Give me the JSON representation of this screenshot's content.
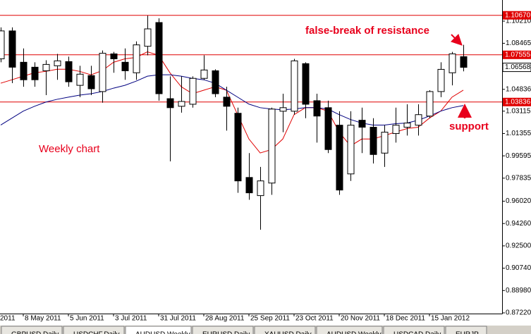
{
  "chart_data": {
    "type": "candlestick",
    "annotations": [
      "false-break of resistance",
      "support",
      "Weekly chart"
    ],
    "x_edge_label": "2011",
    "categories": [
      null,
      null,
      "8 May 2011",
      null,
      null,
      null,
      "5 Jun 2011",
      null,
      null,
      null,
      "3 Jul 2011",
      null,
      null,
      null,
      "31 Jul 2011",
      null,
      null,
      null,
      "28 Aug 2011",
      null,
      null,
      null,
      "25 Sep 2011",
      null,
      null,
      null,
      "23 Oct 2011",
      null,
      null,
      null,
      "20 Nov 2011",
      null,
      null,
      null,
      "18 Dec 2011",
      null,
      null,
      null,
      "15 Jan 2012",
      null,
      null,
      null
    ],
    "open": [
      1.0724,
      1.0944,
      1.0697,
      1.0658,
      1.063,
      1.0669,
      1.0702,
      1.0515,
      1.0592,
      1.0466,
      1.0763,
      1.0697,
      1.0614,
      1.0823,
      1.101,
      1.041,
      1.035,
      1.0366,
      1.057,
      1.063,
      1.0422,
      1.0295,
      0.9789,
      0.9646,
      0.9745,
      1.0311,
      1.0311,
      1.0686,
      1.0394,
      1.0339,
      1.0201,
      0.9817,
      1.024,
      1.0185,
      0.9981,
      1.0135,
      1.0185,
      1.0201,
      1.0273,
      1.0466,
      1.0614,
      1.0741
    ],
    "high": [
      1.0972,
      1.0972,
      1.0806,
      1.0697,
      1.0713,
      1.0763,
      1.0741,
      1.0669,
      1.0669,
      1.079,
      1.0779,
      1.0806,
      1.0861,
      1.1065,
      1.1043,
      1.0586,
      1.0586,
      1.0586,
      1.0752,
      1.0641,
      1.0504,
      1.0339,
      0.9981,
      0.9872,
      1.0339,
      1.0449,
      1.0724,
      1.0697,
      1.0449,
      1.0394,
      1.0311,
      1.0311,
      1.0339,
      1.0256,
      1.0201,
      1.0339,
      1.0366,
      1.0366,
      1.0477,
      1.0697,
      1.0779,
      1.0834
    ],
    "low": [
      1.0697,
      1.0532,
      1.0504,
      1.0504,
      1.0438,
      1.0559,
      1.0504,
      1.0422,
      1.0438,
      1.0378,
      1.0614,
      1.0559,
      1.0559,
      1.0752,
      1.0394,
      0.9916,
      1.03,
      1.0339,
      1.0559,
      1.0422,
      1.0158,
      0.9668,
      0.9613,
      0.9377,
      0.9652,
      1.0146,
      1.0284,
      1.0256,
      1.0064,
      0.9981,
      0.9652,
      0.9762,
      0.9981,
      0.9899,
      0.9872,
      1.0064,
      1.0119,
      1.0119,
      1.0256,
      1.0422,
      1.0515,
      1.0625
    ],
    "close": [
      1.0944,
      1.0658,
      1.0559,
      1.0559,
      1.068,
      1.0708,
      1.0543,
      1.0603,
      1.0488,
      1.0768,
      1.0724,
      1.063,
      1.0834,
      1.096,
      1.0449,
      1.0339,
      1.0388,
      1.057,
      1.0636,
      1.0449,
      1.035,
      0.9762,
      0.9668,
      0.9762,
      1.0328,
      1.0339,
      1.0708,
      1.0366,
      1.0273,
      1.0009,
      0.969,
      1.0201,
      1.0185,
      0.997,
      1.0146,
      1.0201,
      1.0218,
      1.0284,
      1.0466,
      1.0641,
      1.0763,
      1.0657
    ],
    "up_color": "#ffffff",
    "down_color": "#000000",
    "series": [
      {
        "color": "#e00000",
        "values": [
          1.0532,
          1.0559,
          1.0587,
          1.0614,
          1.0625,
          1.0642,
          1.0642,
          1.0625,
          1.0598,
          1.0631,
          1.0697,
          1.0724,
          1.0735,
          1.0779,
          1.0752,
          1.0614,
          1.0504,
          1.0449,
          1.0477,
          1.0504,
          1.0477,
          1.0284,
          1.0092,
          0.9982,
          1.0009,
          1.0092,
          1.0284,
          1.0339,
          1.0339,
          1.0312,
          1.0147,
          1.0037,
          1.0092,
          1.0092,
          1.0119,
          1.0147,
          1.0174,
          1.0185,
          1.0257,
          1.0312,
          1.0422,
          1.0477
        ]
      },
      {
        "color": "#000080",
        "values": [
          1.0202,
          1.0257,
          1.0312,
          1.035,
          1.0383,
          1.0405,
          1.0422,
          1.0438,
          1.0449,
          1.0466,
          1.0493,
          1.0515,
          1.0548,
          1.0587,
          1.0598,
          1.0598,
          1.0587,
          1.057,
          1.0559,
          1.0532,
          1.0477,
          1.0422,
          1.0367,
          1.0339,
          1.0328,
          1.0323,
          1.0328,
          1.0339,
          1.0339,
          1.0328,
          1.0284,
          1.0246,
          1.0218,
          1.0202,
          1.0202,
          1.0213,
          1.0218,
          1.024,
          1.0273,
          1.0312,
          1.0339,
          1.0356
        ]
      }
    ],
    "levels": [
      {
        "value": 1.1067,
        "label": "1.10670"
      },
      {
        "value": 1.07555,
        "label": "1.07555"
      },
      {
        "value": 1.03836,
        "label": "1.03836"
      }
    ],
    "level_color": "#e00000",
    "last_price": 1.06568,
    "ylim": [
      0.87164,
      1.11876
    ],
    "yticks": [
      {
        "value": 0.8722,
        "label": "0.87220"
      },
      {
        "value": 0.8898,
        "label": "0.88980"
      },
      {
        "value": 0.9074,
        "label": "0.90740"
      },
      {
        "value": 0.925,
        "label": "0.92500"
      },
      {
        "value": 0.9426,
        "label": "0.94260"
      },
      {
        "value": 0.9602,
        "label": "0.96020"
      },
      0.97835,
      0.99595,
      1.01355,
      1.03115,
      1.04836,
      1.08465,
      {
        "value": 1.1021,
        "label": "1.10210"
      }
    ]
  },
  "tabs": [
    "GBPUSD,Daily",
    "USDCHF,Daily",
    "AUDUSD,Weekly",
    "EURUSD,Daily",
    "XAUUSD,Daily",
    "AUDUSD,Weekly",
    "USDCAD,Daily",
    "EURJP"
  ]
}
